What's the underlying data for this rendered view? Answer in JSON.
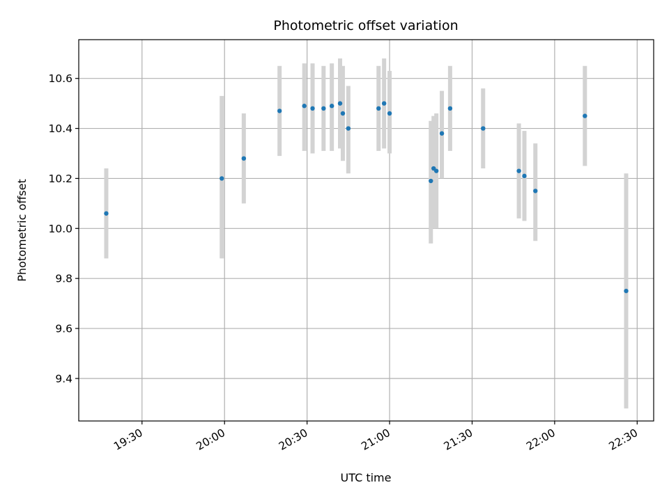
{
  "chart_data": {
    "type": "scatter",
    "title": "Photometric offset variation",
    "xlabel": "UTC time",
    "ylabel": "Photometric offset",
    "x_ticks": [
      "19:30",
      "20:00",
      "20:30",
      "21:00",
      "21:30",
      "22:00",
      "22:30"
    ],
    "y_ticks": [
      "9.4",
      "9.6",
      "9.8",
      "10.0",
      "10.2",
      "10.4",
      "10.6"
    ],
    "xlim": [
      "19:07",
      "22:36"
    ],
    "ylim": [
      9.23,
      10.755
    ],
    "grid": true,
    "marker_color": "#1f77b4",
    "errorbar_color": "#d3d3d3",
    "points": [
      {
        "x": "19:17",
        "y": 10.06,
        "ylow": 9.88,
        "yhigh": 10.24
      },
      {
        "x": "19:59",
        "y": 10.2,
        "ylow": 9.88,
        "yhigh": 10.53
      },
      {
        "x": "20:07",
        "y": 10.28,
        "ylow": 10.1,
        "yhigh": 10.46
      },
      {
        "x": "20:20",
        "y": 10.47,
        "ylow": 10.29,
        "yhigh": 10.65
      },
      {
        "x": "20:29",
        "y": 10.49,
        "ylow": 10.31,
        "yhigh": 10.66
      },
      {
        "x": "20:32",
        "y": 10.48,
        "ylow": 10.3,
        "yhigh": 10.66
      },
      {
        "x": "20:36",
        "y": 10.48,
        "ylow": 10.31,
        "yhigh": 10.65
      },
      {
        "x": "20:39",
        "y": 10.49,
        "ylow": 10.31,
        "yhigh": 10.66
      },
      {
        "x": "20:42",
        "y": 10.5,
        "ylow": 10.32,
        "yhigh": 10.68
      },
      {
        "x": "20:43",
        "y": 10.46,
        "ylow": 10.27,
        "yhigh": 10.65
      },
      {
        "x": "20:45",
        "y": 10.4,
        "ylow": 10.22,
        "yhigh": 10.57
      },
      {
        "x": "20:56",
        "y": 10.48,
        "ylow": 10.31,
        "yhigh": 10.65
      },
      {
        "x": "20:58",
        "y": 10.5,
        "ylow": 10.32,
        "yhigh": 10.68
      },
      {
        "x": "21:00",
        "y": 10.46,
        "ylow": 10.3,
        "yhigh": 10.63
      },
      {
        "x": "21:15",
        "y": 10.19,
        "ylow": 9.94,
        "yhigh": 10.43
      },
      {
        "x": "21:16",
        "y": 10.24,
        "ylow": 10.0,
        "yhigh": 10.45
      },
      {
        "x": "21:17",
        "y": 10.23,
        "ylow": 10.0,
        "yhigh": 10.46
      },
      {
        "x": "21:19",
        "y": 10.38,
        "ylow": 10.2,
        "yhigh": 10.55
      },
      {
        "x": "21:22",
        "y": 10.48,
        "ylow": 10.31,
        "yhigh": 10.65
      },
      {
        "x": "21:34",
        "y": 10.4,
        "ylow": 10.24,
        "yhigh": 10.56
      },
      {
        "x": "21:47",
        "y": 10.23,
        "ylow": 10.04,
        "yhigh": 10.42
      },
      {
        "x": "21:49",
        "y": 10.21,
        "ylow": 10.03,
        "yhigh": 10.39
      },
      {
        "x": "21:53",
        "y": 10.15,
        "ylow": 9.95,
        "yhigh": 10.34
      },
      {
        "x": "22:11",
        "y": 10.45,
        "ylow": 10.25,
        "yhigh": 10.65
      },
      {
        "x": "22:26",
        "y": 9.75,
        "ylow": 9.28,
        "yhigh": 10.22
      }
    ]
  }
}
